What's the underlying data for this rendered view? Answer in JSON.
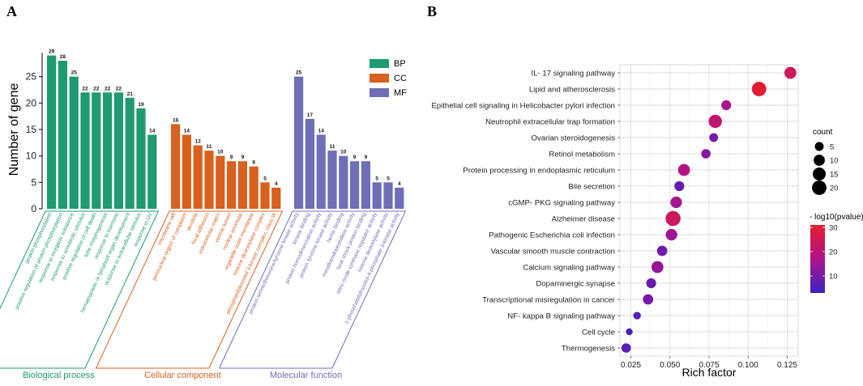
{
  "chart_data": [
    {
      "panel": "A",
      "type": "bar",
      "ylabel": "Number of gene",
      "ylim": [
        0,
        30
      ],
      "yticks": [
        0,
        5,
        10,
        15,
        20,
        25
      ],
      "legend_position": "top-right",
      "groups": [
        {
          "name": "BP",
          "title": "Biological process",
          "color": "#1f9a72",
          "categories": [
            "protein phosphorylation",
            "positive regulation of protein phosphorylation",
            "response to inorganic substance",
            "response to xenobiotic stimulus",
            "positive regulation of cell death",
            "tube morphogenesis",
            "response to hormone",
            "hematopoietic or lymphoid organ development",
            "response to extracellular stimulus",
            "response to UV"
          ],
          "values": [
            29,
            28,
            25,
            22,
            22,
            22,
            22,
            21,
            19,
            14
          ]
        },
        {
          "name": "CC",
          "title": "Cellular component",
          "color": "#d9601e",
          "categories": [
            "membrane raft",
            "perinuclear region of cytoplasm",
            "dendrite",
            "focal adhesion",
            "extracellular matrix",
            "vesicle lumen",
            "nuclear envelope",
            "organelle outer membrane",
            "histone deacetylase complex",
            "phosphatidylinositol 3-kinase complex, class IA"
          ],
          "values": [
            16,
            14,
            12,
            11,
            10,
            9,
            9,
            8,
            5,
            4
          ]
        },
        {
          "name": "MF",
          "title": "Molecular function",
          "color": "#6e6fb6",
          "categories": [
            "protein serine/threonine/tyrosine kinase activity",
            "kinase binding",
            "protein homodimerization activity",
            "protein tyrosine kinase activity",
            "heme binding",
            "metalloendopeptidase activity",
            "heat shock protein binding",
            "nitric-oxide synthase regulator activity",
            "histone deacetylase activity",
            "1-phosphatidylinositol-4-phosphate 3-kinase activity"
          ],
          "values": [
            25,
            17,
            14,
            11,
            10,
            9,
            9,
            5,
            5,
            4
          ]
        }
      ]
    },
    {
      "panel": "B",
      "type": "scatter",
      "xlabel": "Rich factor",
      "xlim": [
        0.018,
        0.132
      ],
      "xticks": [
        0.025,
        0.05,
        0.075,
        0.1,
        0.125
      ],
      "xtick_labels": [
        "0.025",
        "0.050",
        "0.075",
        "0.100",
        "0.125"
      ],
      "pathways": [
        "IL- 17 signaling pathway",
        "Lipid and atherosclerosis",
        "Epithelial cell signaling in Helicobacter pylori infection",
        "Neutrophil extracellular trap formation",
        "Ovarian steroidogenesis",
        "Retinol metabolism",
        "Protein processing in endoplasmic reticulum",
        "Bile secretion",
        "cGMP- PKG signaling pathway",
        "Alzheimer disease",
        "Pathogenic Escherichia coli infection",
        "Vascular smooth muscle contraction",
        "Calcium signaling pathway",
        "Dopaminergic synapse",
        "Transcriptional misregulation in cancer",
        "NF- kappa B signaling pathway",
        "Cell cycle",
        "Thermogenesis"
      ],
      "rich_factor": [
        0.127,
        0.107,
        0.086,
        0.079,
        0.078,
        0.073,
        0.059,
        0.056,
        0.054,
        0.052,
        0.051,
        0.045,
        0.042,
        0.038,
        0.036,
        0.029,
        0.024,
        0.022
      ],
      "count": [
        12,
        20,
        7,
        16,
        5,
        6,
        12,
        7,
        11,
        22,
        11,
        8,
        12,
        7,
        8,
        3,
        2,
        6
      ],
      "neg_log10_pvalue": [
        25,
        30,
        16,
        21,
        10,
        12,
        18,
        8,
        16,
        24,
        15,
        9,
        14,
        8,
        10,
        6,
        5,
        6
      ],
      "size_legend_title": "count",
      "size_legend_values": [
        5,
        10,
        15,
        20
      ],
      "color_legend_title": "- log10(pvalue)",
      "color_legend_ticks": [
        10,
        20,
        30
      ],
      "color_range": [
        3,
        31
      ],
      "color_low": "#3b22c4",
      "color_mid": "#b0138a",
      "color_high": "#e61e2c"
    }
  ],
  "panel_labels": [
    "A",
    "B"
  ]
}
